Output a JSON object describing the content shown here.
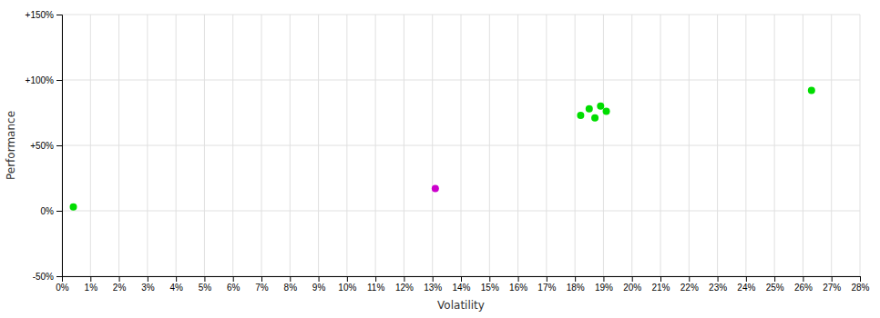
{
  "chart_data": {
    "type": "scatter",
    "xlabel": "Volatility",
    "ylabel": "Performance",
    "xlim": [
      0,
      0.28
    ],
    "ylim": [
      -0.5,
      1.5
    ],
    "xticks": [
      {
        "value": 0.0,
        "label": "0%"
      },
      {
        "value": 0.01,
        "label": "1%"
      },
      {
        "value": 0.02,
        "label": "2%"
      },
      {
        "value": 0.03,
        "label": "3%"
      },
      {
        "value": 0.04,
        "label": "4%"
      },
      {
        "value": 0.05,
        "label": "5%"
      },
      {
        "value": 0.06,
        "label": "6%"
      },
      {
        "value": 0.07,
        "label": "7%"
      },
      {
        "value": 0.08,
        "label": "8%"
      },
      {
        "value": 0.09,
        "label": "9%"
      },
      {
        "value": 0.1,
        "label": "10%"
      },
      {
        "value": 0.11,
        "label": "11%"
      },
      {
        "value": 0.12,
        "label": "12%"
      },
      {
        "value": 0.13,
        "label": "13%"
      },
      {
        "value": 0.14,
        "label": "14%"
      },
      {
        "value": 0.15,
        "label": "15%"
      },
      {
        "value": 0.16,
        "label": "16%"
      },
      {
        "value": 0.17,
        "label": "17%"
      },
      {
        "value": 0.18,
        "label": "18%"
      },
      {
        "value": 0.19,
        "label": "19%"
      },
      {
        "value": 0.2,
        "label": "20%"
      },
      {
        "value": 0.21,
        "label": "21%"
      },
      {
        "value": 0.22,
        "label": "22%"
      },
      {
        "value": 0.23,
        "label": "23%"
      },
      {
        "value": 0.24,
        "label": "24%"
      },
      {
        "value": 0.25,
        "label": "25%"
      },
      {
        "value": 0.26,
        "label": "26%"
      },
      {
        "value": 0.27,
        "label": "27%"
      },
      {
        "value": 0.28,
        "label": "28%"
      }
    ],
    "yticks": [
      {
        "value": -0.5,
        "label": "-50%"
      },
      {
        "value": 0.0,
        "label": "0%"
      },
      {
        "value": 0.5,
        "label": "+50%"
      },
      {
        "value": 1.0,
        "label": "+100%"
      },
      {
        "value": 1.5,
        "label": "+150%"
      }
    ],
    "grid": true,
    "series": [
      {
        "color": "#00dd00",
        "x": [
          0.182,
          0.185,
          0.187,
          0.189,
          0.191,
          0.263
        ],
        "values": [
          0.73,
          0.78,
          0.71,
          0.8,
          0.76,
          0.92
        ]
      },
      {
        "color": "#cc00cc",
        "x": [
          0.131
        ],
        "values": [
          0.17
        ]
      },
      {
        "color": "#00dd00",
        "x": [
          0.004
        ],
        "values": [
          0.03
        ]
      }
    ]
  }
}
